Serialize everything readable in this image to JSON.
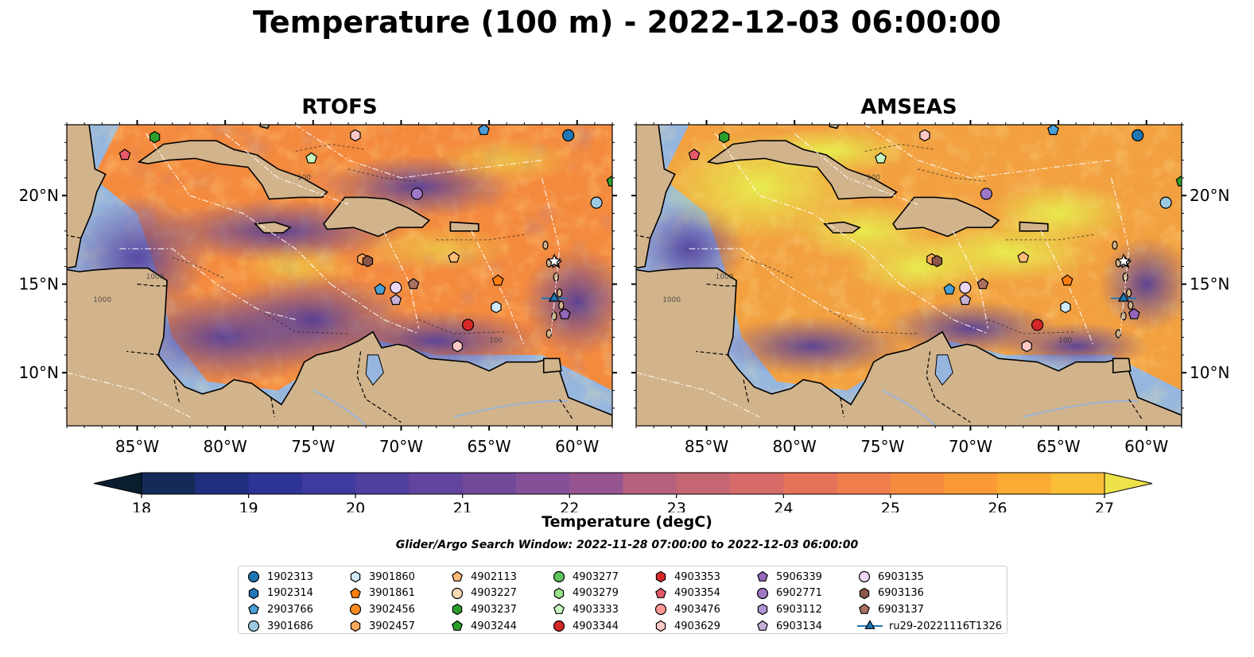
{
  "title": "Temperature (100 m) - 2022-12-03 06:00:00",
  "panels": {
    "left": {
      "title": "RTOFS"
    },
    "right": {
      "title": "AMSEAS"
    }
  },
  "map_axes": {
    "lon_range": [
      -89,
      -58
    ],
    "lat_range": [
      7,
      24
    ],
    "lon_ticks": [
      "85°W",
      "80°W",
      "75°W",
      "70°W",
      "65°W",
      "60°W"
    ],
    "lat_ticks": [
      "20°N",
      "15°N",
      "10°N"
    ],
    "contour_labels": [
      "100",
      "1000"
    ]
  },
  "colorbar": {
    "min": 18,
    "max": 27,
    "step": 0.5,
    "ticks": [
      "18",
      "19",
      "20",
      "21",
      "22",
      "23",
      "24",
      "25",
      "26",
      "27"
    ],
    "label": "Temperature (degC)",
    "colors": [
      "#0b1e30",
      "#142a58",
      "#1f2f7d",
      "#2e3396",
      "#3f3a9e",
      "#513f9f",
      "#62449e",
      "#73499b",
      "#855097",
      "#965590",
      "#a75b88",
      "#b7607e",
      "#c76673",
      "#d76b67",
      "#e5735a",
      "#ef7e4c",
      "#f68b3f",
      "#f99a35",
      "#fbab32",
      "#fabd36",
      "#f6cf3e",
      "#eee24a"
    ]
  },
  "search_window": "Glider/Argo Search Window: 2022-11-28 07:00:00 to 2022-12-03 06:00:00",
  "legend": [
    {
      "label": "1902313",
      "marker": "circle",
      "color": "#1f77b4"
    },
    {
      "label": "1902314",
      "marker": "hexagon",
      "color": "#1f77b4"
    },
    {
      "label": "2903766",
      "marker": "pentagon",
      "color": "#4a9fd6"
    },
    {
      "label": "3901686",
      "marker": "circle",
      "color": "#9ecae1"
    },
    {
      "label": "3901860",
      "marker": "hexagon",
      "color": "#d0e9f8"
    },
    {
      "label": "3901861",
      "marker": "pentagon",
      "color": "#ff7f0e"
    },
    {
      "label": "3902456",
      "marker": "circle",
      "color": "#ff8a1e"
    },
    {
      "label": "3902457",
      "marker": "hexagon",
      "color": "#ffa75a"
    },
    {
      "label": "4902113",
      "marker": "pentagon",
      "color": "#ffbb78"
    },
    {
      "label": "4903227",
      "marker": "circle",
      "color": "#ffd9b5"
    },
    {
      "label": "4903237",
      "marker": "hexagon",
      "color": "#2ca02c"
    },
    {
      "label": "4903244",
      "marker": "pentagon",
      "color": "#2ca02c"
    },
    {
      "label": "4903277",
      "marker": "circle",
      "color": "#5fc35f"
    },
    {
      "label": "4903279",
      "marker": "hexagon",
      "color": "#98df8a"
    },
    {
      "label": "4903333",
      "marker": "pentagon",
      "color": "#c8f5c0"
    },
    {
      "label": "4903344",
      "marker": "circle",
      "color": "#d62728"
    },
    {
      "label": "4903353",
      "marker": "hexagon",
      "color": "#d62728"
    },
    {
      "label": "4903354",
      "marker": "pentagon",
      "color": "#e8596a"
    },
    {
      "label": "4903476",
      "marker": "circle",
      "color": "#ff9896"
    },
    {
      "label": "4903629",
      "marker": "hexagon",
      "color": "#ffc8c6"
    },
    {
      "label": "5906339",
      "marker": "pentagon",
      "color": "#9467bd"
    },
    {
      "label": "6902771",
      "marker": "circle",
      "color": "#9e78c7"
    },
    {
      "label": "6903112",
      "marker": "hexagon",
      "color": "#b294d8"
    },
    {
      "label": "6903134",
      "marker": "pentagon",
      "color": "#c5b0d5"
    },
    {
      "label": "6903135",
      "marker": "circle",
      "color": "#ecd6f5"
    },
    {
      "label": "6903136",
      "marker": "hexagon",
      "color": "#8c564b"
    },
    {
      "label": "6903137",
      "marker": "pentagon",
      "color": "#a8705f"
    },
    {
      "label": "ru29-20221116T1326",
      "marker": "triangle-line",
      "color": "#1f77b4"
    }
  ],
  "platform_positions": [
    {
      "id": "1902313",
      "lon": -60.5,
      "lat": 23.4
    },
    {
      "id": "2903766",
      "lon": -65.3,
      "lat": 23.7
    },
    {
      "id": "3901686",
      "lon": -58.9,
      "lat": 19.6
    },
    {
      "id": "3901860",
      "lon": -64.6,
      "lat": 13.7
    },
    {
      "id": "3901861",
      "lon": -64.5,
      "lat": 15.2
    },
    {
      "id": "3902457",
      "lon": -72.2,
      "lat": 16.4
    },
    {
      "id": "4902113",
      "lon": -67.0,
      "lat": 16.5
    },
    {
      "id": "4903237",
      "lon": -84.0,
      "lat": 23.3
    },
    {
      "id": "4903244",
      "lon": -58.0,
      "lat": 20.8
    },
    {
      "id": "4903333",
      "lon": -75.1,
      "lat": 22.1
    },
    {
      "id": "4903344",
      "lon": -66.2,
      "lat": 12.7
    },
    {
      "id": "4903354",
      "lon": -85.7,
      "lat": 22.3
    },
    {
      "id": "4903629",
      "lon": -66.8,
      "lat": 11.5
    },
    {
      "id": "4903629b",
      "lon": -72.6,
      "lat": 23.4
    },
    {
      "id": "5906339",
      "lon": -60.7,
      "lat": 13.3
    },
    {
      "id": "6902771",
      "lon": -69.1,
      "lat": 20.1
    },
    {
      "id": "2903766b",
      "lon": -71.2,
      "lat": 14.7
    },
    {
      "id": "6903134",
      "lon": -70.3,
      "lat": 14.1
    },
    {
      "id": "6903135",
      "lon": -70.3,
      "lat": 14.8
    },
    {
      "id": "6903136",
      "lon": -71.9,
      "lat": 16.3
    },
    {
      "id": "6903137",
      "lon": -69.3,
      "lat": 15.0
    },
    {
      "id": "ru29-20221116T1326",
      "lon": -61.3,
      "lat": 14.2
    },
    {
      "id": "star-buoy",
      "lon": -61.2,
      "lat": 16.2
    }
  ]
}
